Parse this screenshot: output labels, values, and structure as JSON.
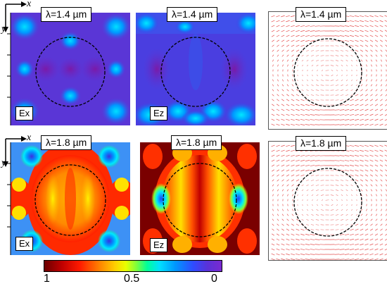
{
  "panels": {
    "top_left": {
      "lambda": "λ=1.4 µm",
      "component": "Ex"
    },
    "top_mid": {
      "lambda": "λ=1.4 µm",
      "component": "Ez"
    },
    "top_right": {
      "lambda": "λ=1.4 µm"
    },
    "bot_left": {
      "lambda": "λ=1.8 µm",
      "component": "Ex"
    },
    "bot_mid": {
      "lambda": "λ=1.8 µm",
      "component": "Ez"
    },
    "bot_right": {
      "lambda": "λ=1.8 µm"
    }
  },
  "axes": {
    "x": "x",
    "y": "y"
  },
  "colorbar": {
    "left": "1",
    "mid": "0.5",
    "right": "0"
  },
  "colors": {
    "low_purple": "#7a2ad0",
    "high_darkred": "#6b0000",
    "arrow_red": "#e03030"
  }
}
